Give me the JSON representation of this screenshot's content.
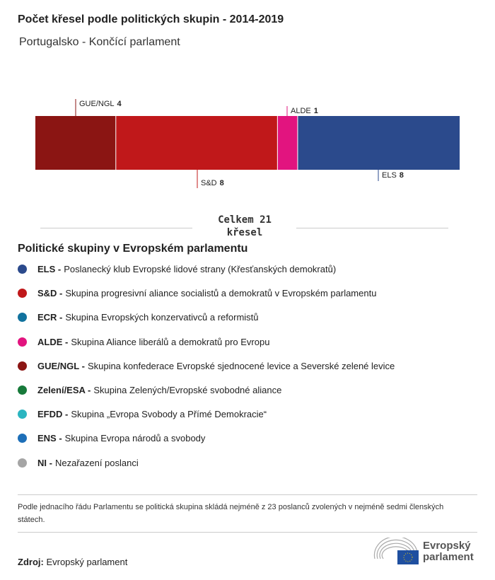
{
  "title": "Počet křesel podle politických skupin - 2014-2019",
  "subtitle": "Portugalsko - Končící parlament",
  "chart_data": {
    "type": "stacked-bar",
    "total": 21,
    "segments": [
      {
        "name": "GUE/NGL",
        "value": 4,
        "color": "#8b1513",
        "label_pos": "top"
      },
      {
        "name": "S&D",
        "value": 8,
        "color": "#c0181a",
        "label_pos": "bottom"
      },
      {
        "name": "ALDE",
        "value": 1,
        "color": "#e2147f",
        "label_pos": "top"
      },
      {
        "name": "ELS",
        "value": 8,
        "color": "#2b4a8c",
        "label_pos": "bottom"
      }
    ]
  },
  "total_line1": "Celkem 21",
  "total_line2": "křesel",
  "legend_title": "Politické skupiny v Evropském parlamentu",
  "legend": [
    {
      "abbr": "ELS -",
      "desc": "Poslanecký klub Evropské lidové strany (Křesťanských demokratů)",
      "color": "#2b4a8c"
    },
    {
      "abbr": "S&D -",
      "desc": "Skupina progresivní aliance socialistů a demokratů v Evropském parlamentu",
      "color": "#c0181a"
    },
    {
      "abbr": "ECR -",
      "desc": "Skupina Evropských konzervativců a reformistů",
      "color": "#11729e"
    },
    {
      "abbr": "ALDE -",
      "desc": "Skupina Aliance liberálů a demokratů pro Evropu",
      "color": "#e2147f"
    },
    {
      "abbr": "GUE/NGL -",
      "desc": "Skupina konfederace Evropské sjednocené levice a Severské zelené levice",
      "color": "#8b1513"
    },
    {
      "abbr": "Zelení/ESA -",
      "desc": "Skupina Zelených/Evropské svobodné aliance",
      "color": "#177a3a"
    },
    {
      "abbr": "EFDD -",
      "desc": "Skupina „Evropa Svobody a Přímé Demokracie“",
      "color": "#2bb5c0"
    },
    {
      "abbr": "ENS -",
      "desc": "Skupina Evropa národů a svobody",
      "color": "#1d6fb8"
    },
    {
      "abbr": "NI -",
      "desc": "Nezařazení poslanci",
      "color": "#a5a5a5"
    }
  ],
  "note": "Podle jednacího řádu Parlamentu se politická skupina skládá nejméně z 23 poslanců zvolených v nejméně sedmi členských státech.",
  "source_label": "Zdroj:",
  "source_value": "Evropský parlament",
  "logo": {
    "line1": "Evropský",
    "line2": "parlament"
  }
}
